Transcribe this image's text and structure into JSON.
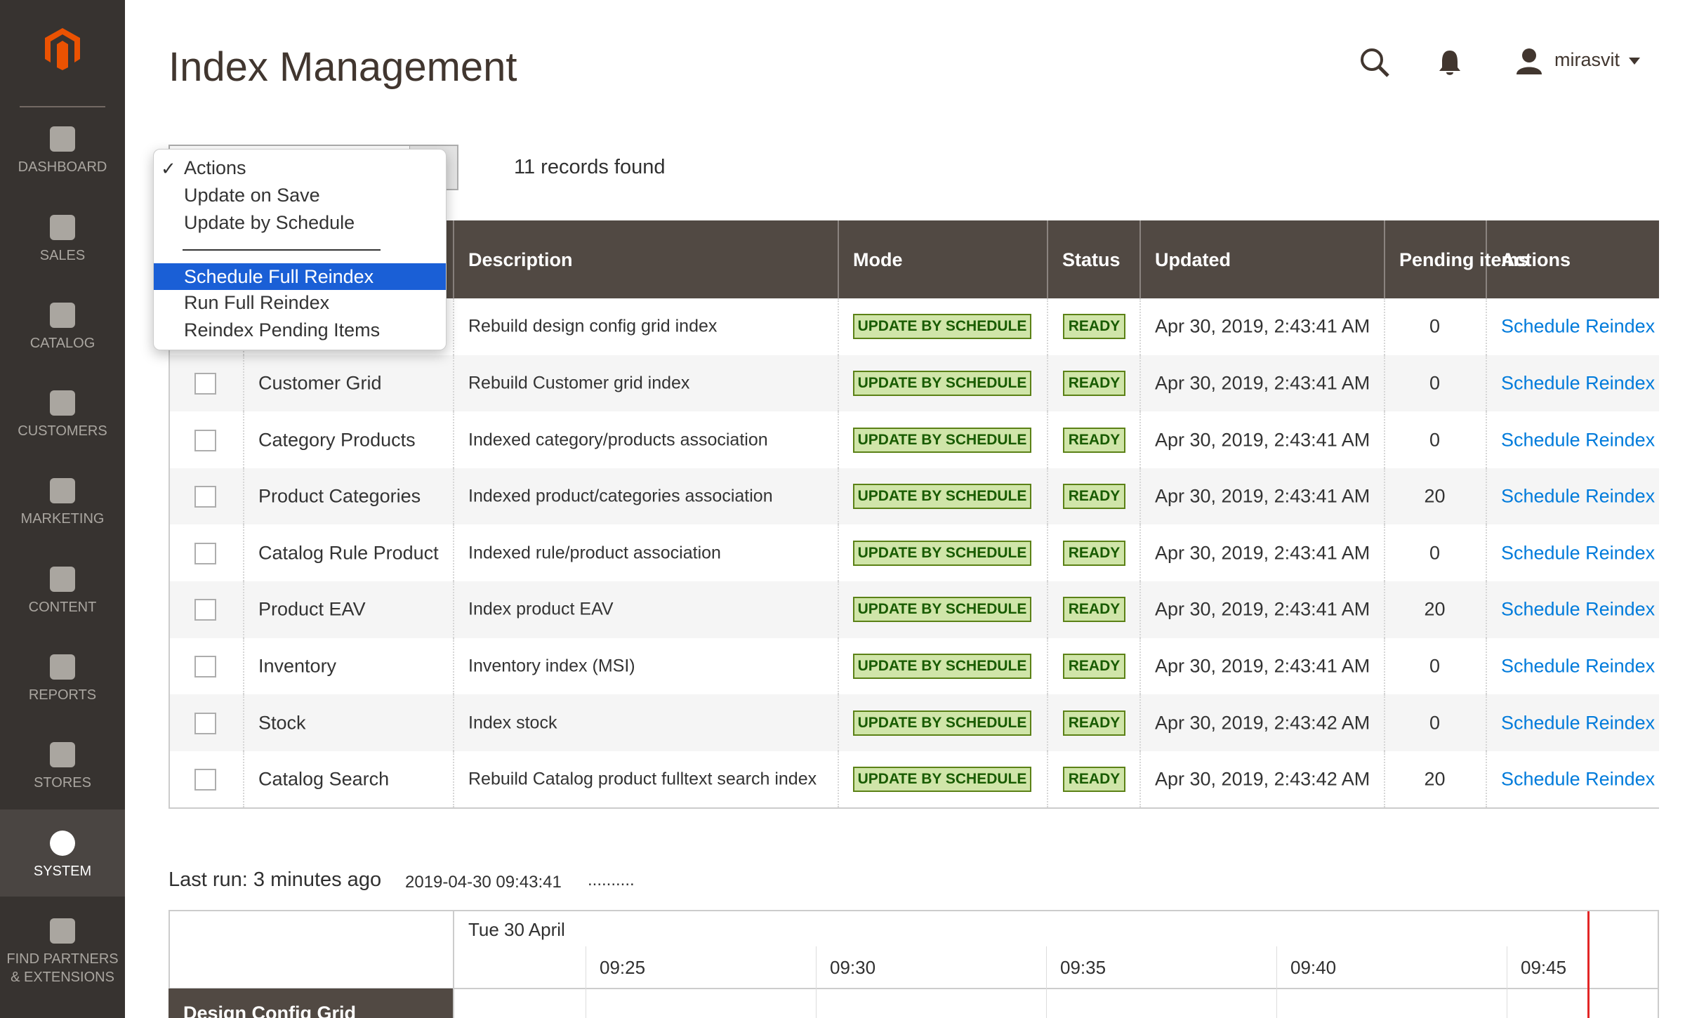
{
  "sidebar": {
    "items": [
      "DASHBOARD",
      "SALES",
      "CATALOG",
      "CUSTOMERS",
      "MARKETING",
      "CONTENT",
      "REPORTS",
      "STORES",
      "SYSTEM",
      "FIND PARTNERS\n& EXTENSIONS"
    ]
  },
  "header": {
    "title": "Index Management",
    "user": "mirasvit"
  },
  "actions_dropdown": {
    "options": [
      "Actions",
      "Update on Save",
      "Update by Schedule",
      "Schedule Full Reindex",
      "Run Full Reindex",
      "Reindex Pending Items"
    ]
  },
  "records": "11 records found",
  "table": {
    "columns": [
      "Description",
      "Mode",
      "Status",
      "Updated",
      "Pending items",
      "Actions"
    ],
    "rows": [
      {
        "name": null,
        "description": "Rebuild design config grid index",
        "mode": "UPDATE BY SCHEDULE",
        "status": "READY",
        "updated": "Apr 30, 2019, 2:43:41 AM",
        "pending": 0,
        "action": "Schedule Reindex"
      },
      {
        "name": "Customer Grid",
        "description": "Rebuild Customer grid index",
        "mode": "UPDATE BY SCHEDULE",
        "status": "READY",
        "updated": "Apr 30, 2019, 2:43:41 AM",
        "pending": 0,
        "action": "Schedule Reindex"
      },
      {
        "name": "Category Products",
        "description": "Indexed category/products association",
        "mode": "UPDATE BY SCHEDULE",
        "status": "READY",
        "updated": "Apr 30, 2019, 2:43:41 AM",
        "pending": 0,
        "action": "Schedule Reindex"
      },
      {
        "name": "Product Categories",
        "description": "Indexed product/categories association",
        "mode": "UPDATE BY SCHEDULE",
        "status": "READY",
        "updated": "Apr 30, 2019, 2:43:41 AM",
        "pending": 20,
        "action": "Schedule Reindex"
      },
      {
        "name": "Catalog Rule Product",
        "description": "Indexed rule/product association",
        "mode": "UPDATE BY SCHEDULE",
        "status": "READY",
        "updated": "Apr 30, 2019, 2:43:41 AM",
        "pending": 0,
        "action": "Schedule Reindex"
      },
      {
        "name": "Product EAV",
        "description": "Index product EAV",
        "mode": "UPDATE BY SCHEDULE",
        "status": "READY",
        "updated": "Apr 30, 2019, 2:43:41 AM",
        "pending": 20,
        "action": "Schedule Reindex"
      },
      {
        "name": "Inventory",
        "description": "Inventory index (MSI)",
        "mode": "UPDATE BY SCHEDULE",
        "status": "READY",
        "updated": "Apr 30, 2019, 2:43:41 AM",
        "pending": 0,
        "action": "Schedule Reindex"
      },
      {
        "name": "Stock",
        "description": "Index stock",
        "mode": "UPDATE BY SCHEDULE",
        "status": "READY",
        "updated": "Apr 30, 2019, 2:43:42 AM",
        "pending": 0,
        "action": "Schedule Reindex"
      },
      {
        "name": "Catalog Search",
        "description": "Rebuild Catalog product fulltext search index",
        "mode": "UPDATE BY SCHEDULE",
        "status": "READY",
        "updated": "Apr 30, 2019, 2:43:42 AM",
        "pending": 20,
        "action": "Schedule Reindex"
      }
    ]
  },
  "timeline": {
    "last_run": "Last run: 3 minutes ago",
    "timestamp": "2019-04-30 09:43:41",
    "progress": "..........",
    "date": "Tue 30 April",
    "times": [
      "09:25",
      "09:30",
      "09:35",
      "09:40",
      "09:45"
    ],
    "first_row": "Design Config Grid"
  }
}
